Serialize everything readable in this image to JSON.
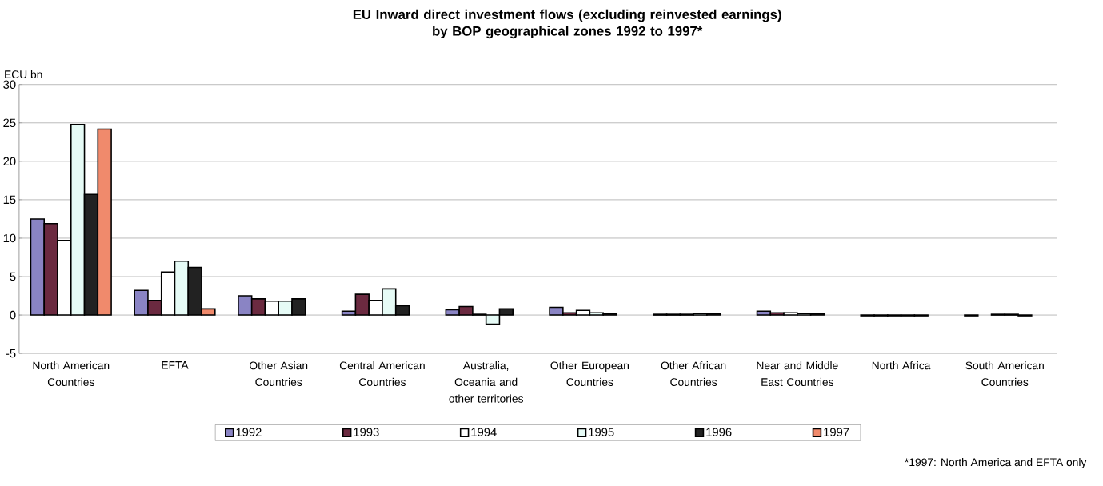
{
  "chart_data": {
    "type": "bar",
    "title": "EU Inward direct investment flows (excluding reinvested earnings)\nby BOP geographical zones 1992 to 1997*",
    "ylabel": "ECU bn",
    "categories": [
      "North American Countries",
      "EFTA",
      "Other Asian Countries",
      "Central American Countries",
      "Australia, Oceania and other territories",
      "Other European Countries",
      "Other African Countries",
      "Near and Middle East Countries",
      "North Africa",
      "South American Countries"
    ],
    "series": [
      {
        "name": "1992",
        "color": "#8a84c4",
        "values": [
          12.5,
          3.2,
          2.5,
          0.5,
          0.7,
          1.0,
          0.1,
          0.5,
          -0.1,
          -0.1
        ]
      },
      {
        "name": "1993",
        "color": "#6b2a40",
        "values": [
          11.9,
          1.9,
          2.1,
          2.7,
          1.1,
          0.3,
          0.1,
          0.3,
          -0.1,
          null
        ]
      },
      {
        "name": "1994",
        "color": "#ffffff",
        "values": [
          9.7,
          5.6,
          1.8,
          1.9,
          0.1,
          0.6,
          0.1,
          0.3,
          -0.1,
          0.1
        ]
      },
      {
        "name": "1995",
        "color": "#e6fbf6",
        "values": [
          24.8,
          7.0,
          1.8,
          3.4,
          -1.2,
          0.3,
          0.2,
          0.2,
          -0.1,
          0.1
        ]
      },
      {
        "name": "1996",
        "color": "#222222",
        "values": [
          15.7,
          6.2,
          2.1,
          1.2,
          0.8,
          0.2,
          0.2,
          0.2,
          -0.1,
          -0.1
        ]
      },
      {
        "name": "1997",
        "color": "#f08a6c",
        "values": [
          24.2,
          0.8,
          null,
          null,
          null,
          null,
          null,
          null,
          null,
          null
        ]
      }
    ],
    "ylim": [
      -5,
      30
    ],
    "yticks": [
      -5,
      0,
      5,
      10,
      15,
      20,
      25,
      30
    ],
    "grid": "y",
    "legend": "bottom",
    "annotations": [
      "*1997: North America and EFTA only"
    ]
  }
}
